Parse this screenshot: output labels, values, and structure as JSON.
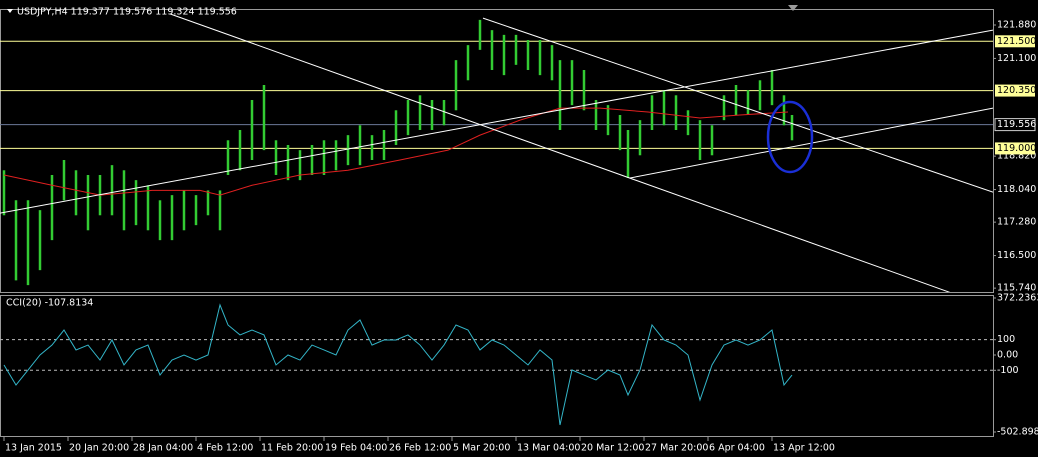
{
  "chart_data": [
    {
      "type": "ohlc",
      "title": "USDJPY,H4  119.377 119.576 119.324 119.556",
      "color": "#33cc33",
      "x": [
        0,
        3,
        6,
        9,
        12,
        15,
        18,
        21,
        24,
        27,
        30,
        33,
        36,
        39,
        42,
        45,
        48,
        51,
        54,
        56,
        59,
        62,
        65,
        68,
        71,
        74,
        77,
        80,
        83,
        86,
        89,
        92,
        95,
        98,
        101,
        104,
        107,
        110,
        113,
        116,
        119,
        122,
        125,
        128,
        131,
        134,
        137,
        139,
        142,
        145,
        148,
        151,
        154,
        156,
        159,
        162,
        165,
        168,
        171,
        174,
        177,
        180,
        183,
        186,
        189,
        192,
        195,
        197
      ],
      "high": [
        118.49,
        117.79,
        117.79,
        117.56,
        118.38,
        118.73,
        118.49,
        118.38,
        118.38,
        118.61,
        118.49,
        118.26,
        118.14,
        117.79,
        117.91,
        118.02,
        117.91,
        118.02,
        118.02,
        119.19,
        119.43,
        120.13,
        120.48,
        119.19,
        119.08,
        118.96,
        119.08,
        119.19,
        119.19,
        119.31,
        119.54,
        119.31,
        119.43,
        119.89,
        120.13,
        120.24,
        120.13,
        120.13,
        121.06,
        121.41,
        122.0,
        121.76,
        121.65,
        121.65,
        121.53,
        121.53,
        121.41,
        121.06,
        121.06,
        120.83,
        120.13,
        120.01,
        119.78,
        119.43,
        119.66,
        120.24,
        120.36,
        120.24,
        119.89,
        119.66,
        119.54,
        120.24,
        120.48,
        120.36,
        120.59,
        120.83,
        120.24,
        119.78
      ],
      "low": [
        117.44,
        115.92,
        115.81,
        116.16,
        116.86,
        117.79,
        117.44,
        117.09,
        117.44,
        117.44,
        117.09,
        117.21,
        117.09,
        116.86,
        116.86,
        117.09,
        117.21,
        117.44,
        117.09,
        118.38,
        118.49,
        118.73,
        118.96,
        118.38,
        118.26,
        118.26,
        118.38,
        118.38,
        118.49,
        118.61,
        118.61,
        118.73,
        118.73,
        119.08,
        119.31,
        119.43,
        119.43,
        119.54,
        119.89,
        120.59,
        121.3,
        120.83,
        120.71,
        120.95,
        120.83,
        120.71,
        120.59,
        119.43,
        120.01,
        119.89,
        119.43,
        119.31,
        118.96,
        118.31,
        118.84,
        119.43,
        119.54,
        119.43,
        119.31,
        118.73,
        118.84,
        119.66,
        119.78,
        119.78,
        119.89,
        120.01,
        119.54,
        119.19
      ],
      "ma": {
        "color": "#e02020",
        "x": [
          0,
          12,
          24,
          37,
          49,
          54,
          62,
          74,
          86,
          99,
          111,
          119,
          129,
          139,
          149,
          161,
          174,
          184,
          196
        ],
        "values": [
          118.38,
          118.14,
          117.91,
          118.02,
          118.02,
          117.91,
          118.14,
          118.38,
          118.49,
          118.73,
          118.96,
          119.31,
          119.66,
          119.94,
          119.94,
          119.85,
          119.71,
          119.78,
          119.85
        ]
      },
      "trendlines": [
        {
          "x": [
            41.5,
            236.5
          ],
          "y": [
            122.14,
            115.64
          ]
        },
        {
          "x": [
            119.75,
            247.25
          ],
          "y": [
            122.04,
            117.98
          ]
        },
        {
          "x": [
            -1,
            247.25
          ],
          "y": [
            117.49,
            121.76
          ]
        },
        {
          "x": [
            156.5,
            247.25
          ],
          "y": [
            118.31,
            119.94
          ]
        }
      ],
      "levels": [
        {
          "value": 121.5,
          "label": "121.500"
        },
        {
          "value": 120.35,
          "label": "120.350"
        },
        {
          "value": 119.0,
          "label": "119.000"
        }
      ],
      "level_color": "#ffff99",
      "current": {
        "value": 119.556,
        "label": "119.556"
      },
      "xlim": [
        -1,
        247.25
      ],
      "ylim": [
        115.65,
        122.23
      ],
      "yticks": [
        {
          "value": 121.88,
          "label": "121.880"
        },
        {
          "value": 121.1,
          "label": "121.100"
        },
        {
          "value": 118.82,
          "label": "118.820"
        },
        {
          "value": 118.04,
          "label": "118.040"
        },
        {
          "value": 117.28,
          "label": "117.280"
        },
        {
          "value": 116.5,
          "label": "116.500"
        },
        {
          "value": 115.74,
          "label": "115.740"
        }
      ]
    },
    {
      "type": "line",
      "title": "CCI(20) -107.8134",
      "color": "#33b5c8",
      "x": [
        0,
        3,
        6,
        9,
        12,
        15,
        18,
        21,
        24,
        27,
        30,
        33,
        36,
        39,
        42,
        45,
        48,
        51,
        54,
        56,
        59,
        62,
        65,
        68,
        71,
        74,
        77,
        80,
        83,
        86,
        89,
        92,
        95,
        98,
        101,
        104,
        107,
        110,
        113,
        116,
        119,
        122,
        125,
        128,
        131,
        134,
        137,
        139,
        142,
        145,
        148,
        151,
        154,
        156,
        159,
        162,
        165,
        168,
        171,
        174,
        177,
        180,
        183,
        186,
        189,
        192,
        195,
        197
      ],
      "values": [
        -65,
        -196,
        -98,
        0,
        65,
        163,
        33,
        65,
        -33,
        98,
        -65,
        33,
        65,
        -131,
        -33,
        0,
        -33,
        0,
        327,
        196,
        131,
        163,
        131,
        -65,
        0,
        -33,
        65,
        33,
        0,
        163,
        229,
        65,
        98,
        98,
        131,
        65,
        -33,
        65,
        196,
        163,
        33,
        98,
        65,
        0,
        -65,
        33,
        -33,
        -457,
        -98,
        -131,
        -163,
        -98,
        -131,
        -261,
        -98,
        196,
        98,
        65,
        0,
        -294,
        -65,
        65,
        98,
        65,
        98,
        163,
        -196,
        -131
      ],
      "levels": [
        100,
        -100
      ],
      "xlim": [
        -1,
        247.25
      ],
      "ylim": [
        -502.8983,
        372.2363
      ],
      "yticks": [
        372.2363,
        100,
        {
          "value": 0,
          "label": "0.00"
        },
        -100,
        -502.8983
      ],
      "xticks": [
        {
          "value": 0,
          "label": "13 Jan 2015"
        },
        {
          "value": 16,
          "label": "20 Jan 20:00"
        },
        {
          "value": 32,
          "label": "28 Jan 04:00"
        },
        {
          "value": 48,
          "label": "4 Feb 12:00"
        },
        {
          "value": 64,
          "label": "11 Feb 20:00"
        },
        {
          "value": 80,
          "label": "19 Feb 04:00"
        },
        {
          "value": 96,
          "label": "26 Feb 12:00"
        },
        {
          "value": 112,
          "label": "5 Mar 20:00"
        },
        {
          "value": 128,
          "label": "13 Mar 04:00"
        },
        {
          "value": 144,
          "label": "20 Mar 12:00"
        },
        {
          "value": 160,
          "label": "27 Mar 20:00"
        },
        {
          "value": 176,
          "label": "6 Apr 04:00"
        },
        {
          "value": 192,
          "label": "13 Apr 12:00"
        }
      ]
    }
  ]
}
